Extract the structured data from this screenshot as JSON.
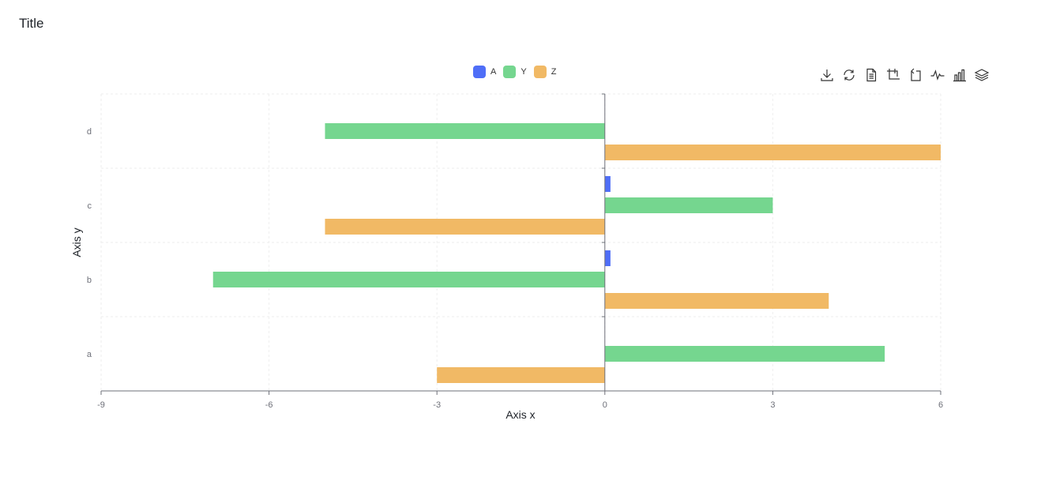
{
  "title": "Title",
  "toolbox": {
    "icons": [
      "download-icon",
      "refresh-icon",
      "data-view-icon",
      "zoom-icon",
      "zoom-reset-icon",
      "line-chart-icon",
      "bar-chart-icon",
      "stack-icon"
    ]
  },
  "chart_data": {
    "type": "bar",
    "orientation": "horizontal",
    "categories": [
      "a",
      "b",
      "c",
      "d"
    ],
    "series": [
      {
        "name": "A",
        "values": [
          0,
          0.1,
          0.1,
          0
        ],
        "color": "#4f6ef7"
      },
      {
        "name": "Y",
        "values": [
          5,
          -7,
          3,
          -5
        ],
        "color": "#75d68f"
      },
      {
        "name": "Z",
        "values": [
          -3,
          4,
          -5,
          6
        ],
        "color": "#f1b965"
      }
    ],
    "xlabel": "Axis x",
    "ylabel": "Axis y",
    "xlim": [
      -9,
      6
    ],
    "xticks": [
      "-9",
      "-6",
      "-3",
      "0",
      "3",
      "6"
    ],
    "legend_position": "top-center",
    "grid": true
  }
}
